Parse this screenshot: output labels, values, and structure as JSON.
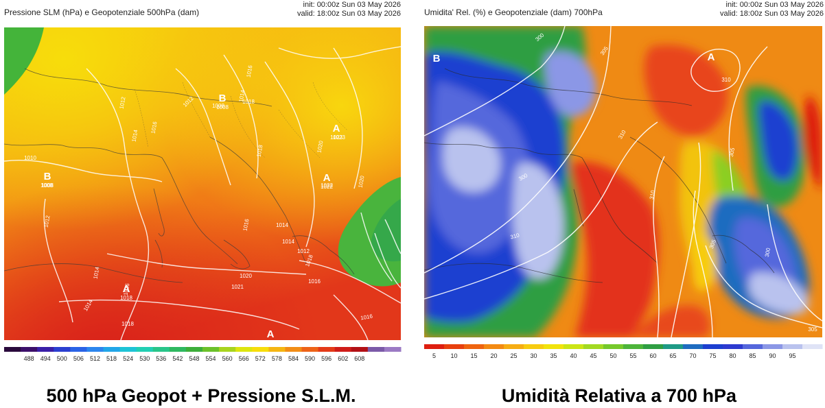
{
  "left": {
    "title": "Pressione SLM (hPa) e Geopotenziale 500hPa (dam)",
    "init": "init: 00:00z Sun 03 May 2026",
    "valid": "valid: 18:00z Sun 03 May 2026",
    "caption": "500 hPa Geopot + Pressione S.L.M.",
    "colorbar": {
      "ticks": [
        "488",
        "494",
        "500",
        "506",
        "512",
        "518",
        "524",
        "530",
        "536",
        "542",
        "548",
        "554",
        "560",
        "566",
        "572",
        "578",
        "584",
        "590",
        "596",
        "602",
        "608"
      ],
      "colors": [
        "#2a0a3c",
        "#3c0f6a",
        "#3a1fa8",
        "#2b3fd0",
        "#2a63e6",
        "#2c86ee",
        "#22a6e8",
        "#1ec3d6",
        "#22cfb3",
        "#29c58a",
        "#2fb860",
        "#3dae3a",
        "#6cc12a",
        "#a8d41e",
        "#dde50e",
        "#f7dd0b",
        "#f5b512",
        "#f28d16",
        "#ee6318",
        "#e43a18",
        "#cf1c18",
        "#b21015",
        "#7b5aa8",
        "#9b7ac4"
      ]
    },
    "labels": {
      "pressure": [
        {
          "t": "1010"
        },
        {
          "t": "1008"
        },
        {
          "t": "1012"
        },
        {
          "t": "1012"
        },
        {
          "t": "1014"
        },
        {
          "t": "1016"
        },
        {
          "t": "1012"
        },
        {
          "t": "1008"
        },
        {
          "t": "1014"
        },
        {
          "t": "1016"
        },
        {
          "t": "1018"
        },
        {
          "t": "1018"
        },
        {
          "t": "1020"
        },
        {
          "t": "1023"
        },
        {
          "t": "1020"
        },
        {
          "t": "1022"
        },
        {
          "t": "1016"
        },
        {
          "t": "1014"
        },
        {
          "t": "1018"
        },
        {
          "t": "1014"
        },
        {
          "t": "1016"
        },
        {
          "t": "1021"
        },
        {
          "t": "1020"
        },
        {
          "t": "1016"
        },
        {
          "t": "1014"
        },
        {
          "t": "1016"
        },
        {
          "t": "1014"
        },
        {
          "t": "1018"
        },
        {
          "t": "1020"
        },
        {
          "t": "1012"
        }
      ],
      "highs_lows": [
        {
          "letter": "B",
          "value": "1008"
        },
        {
          "letter": "B",
          "value": "1008"
        },
        {
          "letter": "A",
          "value": "1023"
        },
        {
          "letter": "A",
          "value": "1022"
        },
        {
          "letter": "A",
          "value": "1018"
        },
        {
          "letter": "A",
          "value": ""
        }
      ]
    }
  },
  "right": {
    "title": "Umidita' Rel. (%) e Geopotenziale (dam) 700hPa",
    "init": "init: 00:00z Sun 03 May 2026",
    "valid": "valid: 18:00z Sun 03 May 2026",
    "caption": "Umidità Relativa a 700 hPa",
    "colorbar": {
      "ticks": [
        "5",
        "10",
        "15",
        "20",
        "25",
        "30",
        "35",
        "40",
        "45",
        "50",
        "55",
        "60",
        "65",
        "70",
        "75",
        "80",
        "85",
        "90",
        "95"
      ],
      "colors": [
        "#de1e10",
        "#e8400e",
        "#ef640f",
        "#f38a12",
        "#f6ad13",
        "#f7cc10",
        "#f1e30c",
        "#cce515",
        "#a3d922",
        "#76c92b",
        "#4db43a",
        "#2f9e43",
        "#1e9a86",
        "#1e6cc0",
        "#1c3fd0",
        "#2d3ad0",
        "#5567dc",
        "#8b97e6",
        "#b9c2ee",
        "#dfe3f6"
      ]
    },
    "labels": {
      "geopotential": [
        {
          "t": "300"
        },
        {
          "t": "305"
        },
        {
          "t": "310"
        },
        {
          "t": "305"
        },
        {
          "t": "310"
        },
        {
          "t": "300"
        },
        {
          "t": "310"
        },
        {
          "t": "305"
        },
        {
          "t": "300"
        },
        {
          "t": "305"
        },
        {
          "t": "310"
        }
      ],
      "highs_lows": [
        {
          "letter": "B"
        },
        {
          "letter": "A"
        }
      ]
    }
  }
}
